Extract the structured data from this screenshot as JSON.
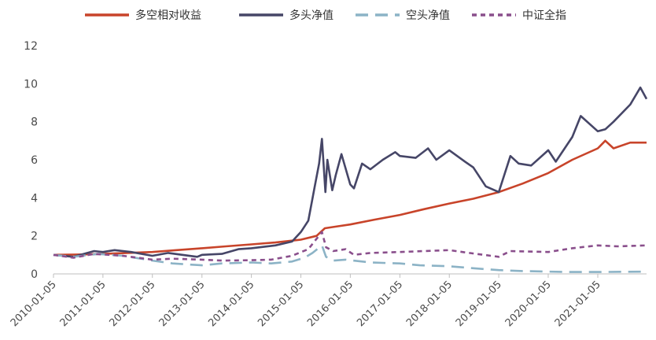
{
  "chart_data": {
    "type": "line",
    "title": "",
    "xlabel": "",
    "ylabel": "",
    "ylim": [
      0,
      12
    ],
    "yticks": [
      0,
      2,
      4,
      6,
      8,
      10,
      12
    ],
    "xlim": [
      "2010-01-05",
      "2021-12-31"
    ],
    "xticks": [
      "2010-01-05",
      "2011-01-05",
      "2012-01-05",
      "2013-01-05",
      "2014-01-05",
      "2015-01-05",
      "2016-01-05",
      "2017-01-05",
      "2018-01-05",
      "2019-01-05",
      "2020-01-05",
      "2021-01-05"
    ],
    "grid": false,
    "legend_position": "top",
    "series": [
      {
        "name": "多空相对收益",
        "color": "#c8442a",
        "dash": "solid",
        "points": [
          [
            "2010-01-05",
            1.0
          ],
          [
            "2010-07-01",
            1.02
          ],
          [
            "2011-01-05",
            1.05
          ],
          [
            "2011-07-01",
            1.1
          ],
          [
            "2012-01-05",
            1.15
          ],
          [
            "2012-07-01",
            1.25
          ],
          [
            "2013-01-05",
            1.35
          ],
          [
            "2013-07-01",
            1.45
          ],
          [
            "2014-01-05",
            1.55
          ],
          [
            "2014-07-01",
            1.65
          ],
          [
            "2015-01-05",
            1.8
          ],
          [
            "2015-05-01",
            2.0
          ],
          [
            "2015-07-01",
            2.4
          ],
          [
            "2015-10-01",
            2.5
          ],
          [
            "2016-01-05",
            2.6
          ],
          [
            "2016-07-01",
            2.85
          ],
          [
            "2017-01-05",
            3.1
          ],
          [
            "2017-07-01",
            3.4
          ],
          [
            "2018-01-05",
            3.7
          ],
          [
            "2018-07-01",
            3.95
          ],
          [
            "2019-01-05",
            4.3
          ],
          [
            "2019-07-01",
            4.75
          ],
          [
            "2020-01-05",
            5.3
          ],
          [
            "2020-07-01",
            6.0
          ],
          [
            "2021-01-05",
            6.6
          ],
          [
            "2021-03-01",
            7.0
          ],
          [
            "2021-05-01",
            6.6
          ],
          [
            "2021-09-01",
            6.9
          ],
          [
            "2021-12-31",
            6.9
          ]
        ]
      },
      {
        "name": "多头净值",
        "color": "#464667",
        "dash": "solid",
        "points": [
          [
            "2010-01-05",
            1.0
          ],
          [
            "2010-06-01",
            0.9
          ],
          [
            "2010-11-01",
            1.2
          ],
          [
            "2011-01-05",
            1.15
          ],
          [
            "2011-04-01",
            1.25
          ],
          [
            "2011-08-01",
            1.15
          ],
          [
            "2012-01-05",
            0.95
          ],
          [
            "2012-05-01",
            1.1
          ],
          [
            "2012-12-01",
            0.9
          ],
          [
            "2013-01-05",
            1.0
          ],
          [
            "2013-06-01",
            1.05
          ],
          [
            "2013-10-01",
            1.3
          ],
          [
            "2014-01-05",
            1.35
          ],
          [
            "2014-07-01",
            1.5
          ],
          [
            "2014-11-01",
            1.7
          ],
          [
            "2015-01-05",
            2.2
          ],
          [
            "2015-03-01",
            2.8
          ],
          [
            "2015-04-15",
            4.5
          ],
          [
            "2015-05-20",
            5.8
          ],
          [
            "2015-06-10",
            7.1
          ],
          [
            "2015-07-05",
            4.3
          ],
          [
            "2015-07-20",
            6.0
          ],
          [
            "2015-08-25",
            4.4
          ],
          [
            "2015-09-20",
            5.2
          ],
          [
            "2015-11-01",
            6.3
          ],
          [
            "2016-01-05",
            4.7
          ],
          [
            "2016-02-01",
            4.5
          ],
          [
            "2016-04-01",
            5.8
          ],
          [
            "2016-06-01",
            5.5
          ],
          [
            "2016-09-01",
            6.0
          ],
          [
            "2016-12-01",
            6.4
          ],
          [
            "2017-01-05",
            6.2
          ],
          [
            "2017-05-01",
            6.1
          ],
          [
            "2017-08-01",
            6.6
          ],
          [
            "2017-10-01",
            6.0
          ],
          [
            "2018-01-05",
            6.5
          ],
          [
            "2018-05-01",
            5.9
          ],
          [
            "2018-07-01",
            5.6
          ],
          [
            "2018-10-01",
            4.6
          ],
          [
            "2019-01-05",
            4.3
          ],
          [
            "2019-04-01",
            6.2
          ],
          [
            "2019-06-01",
            5.8
          ],
          [
            "2019-09-01",
            5.7
          ],
          [
            "2020-01-05",
            6.5
          ],
          [
            "2020-03-01",
            5.9
          ],
          [
            "2020-07-01",
            7.2
          ],
          [
            "2020-09-01",
            8.3
          ],
          [
            "2021-01-05",
            7.5
          ],
          [
            "2021-03-01",
            7.6
          ],
          [
            "2021-05-01",
            8.0
          ],
          [
            "2021-09-01",
            8.9
          ],
          [
            "2021-11-15",
            9.8
          ],
          [
            "2021-12-31",
            9.2
          ]
        ]
      },
      {
        "name": "空头净值",
        "color": "#8cb3c6",
        "dash": "long-dash",
        "points": [
          [
            "2010-01-05",
            1.0
          ],
          [
            "2010-06-01",
            0.9
          ],
          [
            "2010-12-01",
            1.05
          ],
          [
            "2011-06-01",
            0.95
          ],
          [
            "2012-01-05",
            0.7
          ],
          [
            "2012-06-01",
            0.55
          ],
          [
            "2013-01-05",
            0.45
          ],
          [
            "2013-06-01",
            0.55
          ],
          [
            "2014-01-05",
            0.6
          ],
          [
            "2014-06-01",
            0.55
          ],
          [
            "2014-11-01",
            0.65
          ],
          [
            "2015-02-01",
            0.85
          ],
          [
            "2015-04-01",
            1.1
          ],
          [
            "2015-06-10",
            1.5
          ],
          [
            "2015-07-10",
            0.9
          ],
          [
            "2015-09-01",
            0.7
          ],
          [
            "2015-12-01",
            0.75
          ],
          [
            "2016-06-01",
            0.6
          ],
          [
            "2017-01-05",
            0.55
          ],
          [
            "2017-06-01",
            0.45
          ],
          [
            "2018-01-05",
            0.4
          ],
          [
            "2018-07-01",
            0.3
          ],
          [
            "2019-01-05",
            0.2
          ],
          [
            "2019-07-01",
            0.15
          ],
          [
            "2020-01-05",
            0.12
          ],
          [
            "2020-07-01",
            0.1
          ],
          [
            "2021-01-05",
            0.1
          ],
          [
            "2021-12-31",
            0.12
          ]
        ]
      },
      {
        "name": "中证全指",
        "color": "#8a4f8c",
        "dash": "short-dash",
        "points": [
          [
            "2010-01-05",
            1.0
          ],
          [
            "2010-06-01",
            0.85
          ],
          [
            "2010-11-01",
            1.05
          ],
          [
            "2011-06-01",
            0.95
          ],
          [
            "2012-01-05",
            0.75
          ],
          [
            "2012-06-01",
            0.8
          ],
          [
            "2013-01-05",
            0.75
          ],
          [
            "2013-06-01",
            0.7
          ],
          [
            "2014-01-05",
            0.72
          ],
          [
            "2014-06-01",
            0.75
          ],
          [
            "2014-11-01",
            0.95
          ],
          [
            "2015-03-01",
            1.3
          ],
          [
            "2015-06-10",
            2.2
          ],
          [
            "2015-07-10",
            1.4
          ],
          [
            "2015-09-01",
            1.2
          ],
          [
            "2015-12-01",
            1.3
          ],
          [
            "2016-02-01",
            1.0
          ],
          [
            "2016-06-01",
            1.1
          ],
          [
            "2017-01-05",
            1.15
          ],
          [
            "2017-07-01",
            1.2
          ],
          [
            "2018-01-05",
            1.25
          ],
          [
            "2018-06-01",
            1.1
          ],
          [
            "2019-01-05",
            0.9
          ],
          [
            "2019-04-01",
            1.2
          ],
          [
            "2020-01-05",
            1.15
          ],
          [
            "2020-07-01",
            1.35
          ],
          [
            "2021-01-05",
            1.5
          ],
          [
            "2021-06-01",
            1.45
          ],
          [
            "2021-12-31",
            1.5
          ]
        ]
      }
    ]
  }
}
